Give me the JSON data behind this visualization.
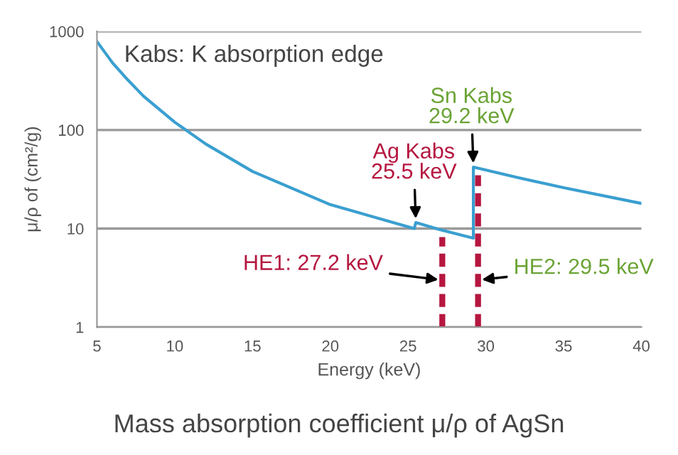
{
  "chart_data": {
    "type": "line",
    "title": "Mass absorption coefficient μ/ρ of AgSn",
    "xlabel": "Energy (keV)",
    "ylabel": "μ/ρ of (cm²/g)",
    "series": [
      {
        "color": "#3a9fd0",
        "x": [
          5,
          6,
          7,
          8,
          10,
          12,
          15,
          20,
          25.4,
          25.5,
          27,
          29.2,
          29.2,
          32,
          35,
          40
        ],
        "values": [
          790,
          480,
          320,
          220,
          120,
          72,
          38,
          17.5,
          10,
          11.5,
          9.8,
          8,
          42,
          33,
          26,
          18
        ]
      }
    ],
    "xlim": [
      5,
      40
    ],
    "xticks": [
      5,
      10,
      15,
      20,
      25,
      30,
      35,
      40
    ],
    "ylim": [
      1,
      1000
    ],
    "yticks": [
      1,
      10,
      100,
      1000
    ],
    "log": "y",
    "grid": "y",
    "marker": "none",
    "line_style": "solid",
    "ref_lines": [
      {
        "axis": "x",
        "value": 27.2,
        "color": "#b5163f",
        "line_style": "dashed"
      },
      {
        "axis": "x",
        "value": 29.5,
        "color": "#b5163f",
        "line_style": "dashed"
      }
    ],
    "annotations": [
      "Kabs: K absorption edge",
      {
        "text": "Ag Kabs\n25.5 keV",
        "x": 25.5,
        "y": 11.5
      },
      {
        "text": "Sn Kabs\n29.2 keV",
        "x": 29.2,
        "y": 42
      },
      {
        "text": "HE1: 27.2 keV",
        "x": 27.2,
        "y": 3
      },
      {
        "text": "HE2: 29.5 keV",
        "x": 29.5,
        "y": 3
      }
    ]
  }
}
